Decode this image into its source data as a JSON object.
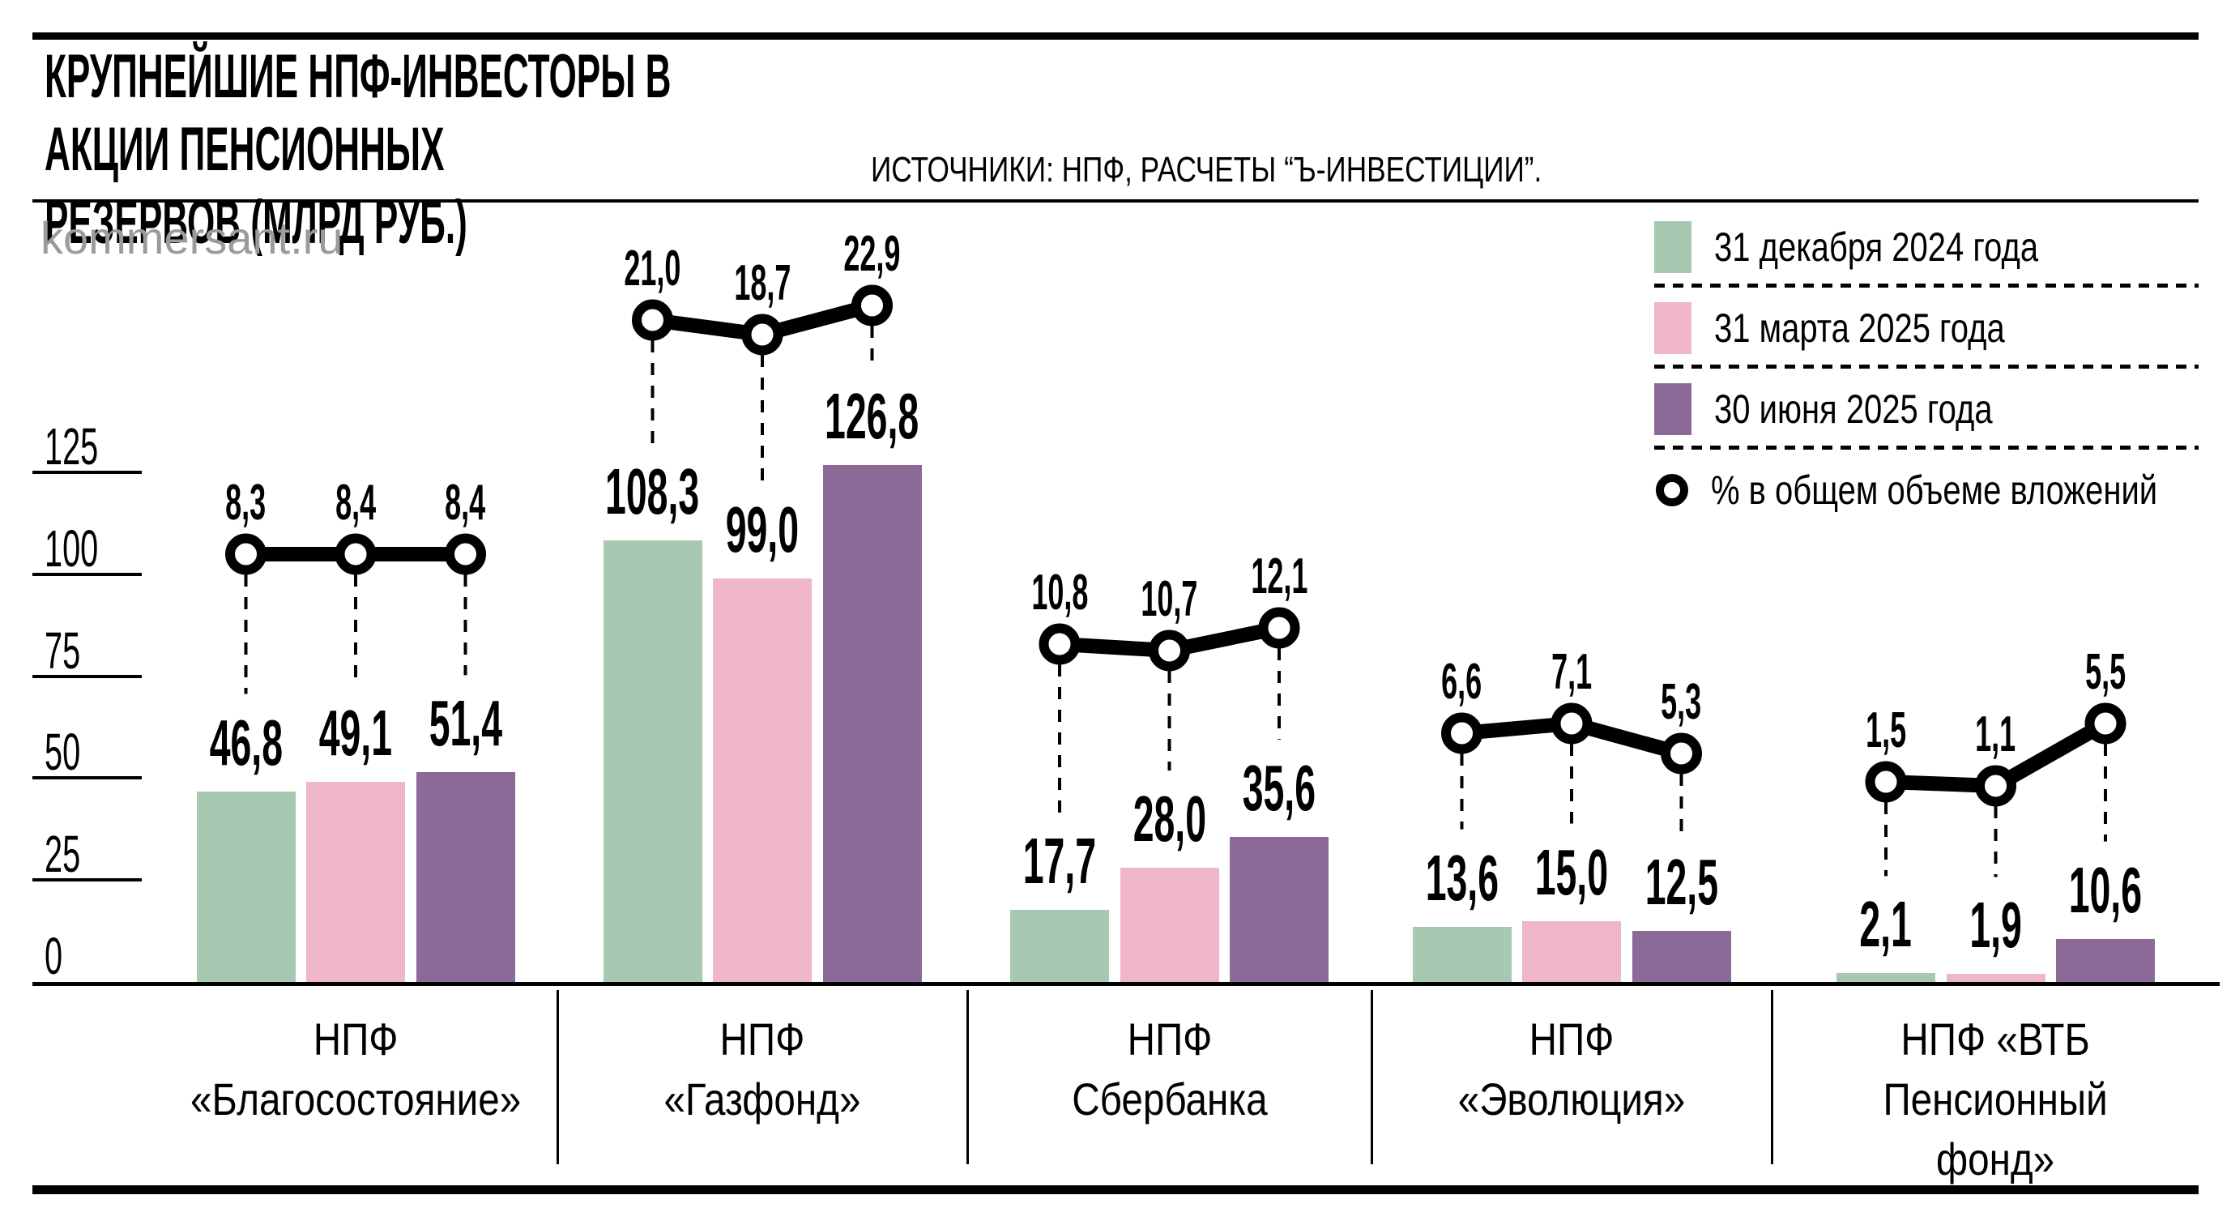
{
  "header": {
    "title": "КРУПНЕЙШИЕ НПФ-ИНВЕСТОРЫ В АКЦИИ ПЕНСИОННЫХ\nРЕЗЕРВОВ (МЛРД РУБ.)",
    "source": "ИСТОЧНИКИ: НПФ, РАСЧЕТЫ “Ъ-ИНВЕСТИЦИИ”.",
    "watermark": "kommersant.ru"
  },
  "legend": {
    "items": [
      {
        "swatch": "green",
        "label": "31 декабря 2024 года"
      },
      {
        "swatch": "pink",
        "label": "31 марта 2025 года"
      },
      {
        "swatch": "purple",
        "label": "30 июня 2025 года"
      },
      {
        "swatch": "ring",
        "label": "% в общем объеме вложений"
      }
    ]
  },
  "colors": {
    "green": "#a8c9b1",
    "pink": "#efb5cb",
    "purple": "#8b6a98",
    "watermark_gray": "#9b9b97",
    "black": "#000000"
  },
  "chart_data": {
    "type": "bar",
    "title": "КРУПНЕЙШИЕ НПФ-ИНВЕСТОРЫ В АКЦИИ ПЕНСИОННЫХ РЕЗЕРВОВ (МЛРД РУБ.)",
    "unit": "млрд руб.",
    "y_axis": {
      "ticks": [
        0,
        25,
        50,
        75,
        100,
        125
      ],
      "ylim": [
        0,
        134
      ],
      "grid": "tick-dashes-left"
    },
    "series": [
      "31 декабря 2024 года",
      "31 марта 2025 года",
      "30 июня 2025 года"
    ],
    "overlay_line": "% в общем объеме вложений",
    "groups": [
      {
        "category": "НПФ\n«Благосостояние»",
        "bar_labels": [
          "46,8",
          "49,1",
          "51,4"
        ],
        "bar_values": [
          46.8,
          49.1,
          51.4
        ],
        "pct_labels": [
          "8,3",
          "8,4",
          "8,4"
        ],
        "pct_values": [
          8.3,
          8.4,
          8.4
        ],
        "pct_marker_y": [
          684,
          684,
          684
        ]
      },
      {
        "category": "НПФ\n«Газфонд»",
        "bar_labels": [
          "108,3",
          "99,0",
          "126,8"
        ],
        "bar_values": [
          108.3,
          99.0,
          126.8
        ],
        "pct_labels": [
          "21,0",
          "18,7",
          "22,9"
        ],
        "pct_values": [
          21.0,
          18.7,
          22.9
        ],
        "pct_marker_y": [
          395,
          413,
          377
        ]
      },
      {
        "category": "НПФ\nСбербанка",
        "bar_labels": [
          "17,7",
          "28,0",
          "35,6"
        ],
        "bar_values": [
          17.7,
          28.0,
          35.6
        ],
        "pct_labels": [
          "10,8",
          "10,7",
          "12,1"
        ],
        "pct_values": [
          10.8,
          10.7,
          12.1
        ],
        "pct_marker_y": [
          795,
          803,
          775
        ]
      },
      {
        "category": "НПФ\n«Эволюция»",
        "bar_labels": [
          "13,6",
          "15,0",
          "12,5"
        ],
        "bar_values": [
          13.6,
          15.0,
          12.5
        ],
        "pct_labels": [
          "6,6",
          "7,1",
          "5,3"
        ],
        "pct_values": [
          6.6,
          7.1,
          5.3
        ],
        "pct_marker_y": [
          905,
          893,
          930
        ]
      },
      {
        "category": "НПФ «ВТБ\nПенсионный\nфонд»",
        "bar_labels": [
          "2,1",
          "1,9",
          "10,6"
        ],
        "bar_values": [
          2.1,
          1.9,
          10.6
        ],
        "pct_labels": [
          "1,5",
          "1,1",
          "5,5"
        ],
        "pct_values": [
          1.5,
          1.1,
          5.5
        ],
        "pct_marker_y": [
          965,
          970,
          893
        ]
      }
    ]
  }
}
